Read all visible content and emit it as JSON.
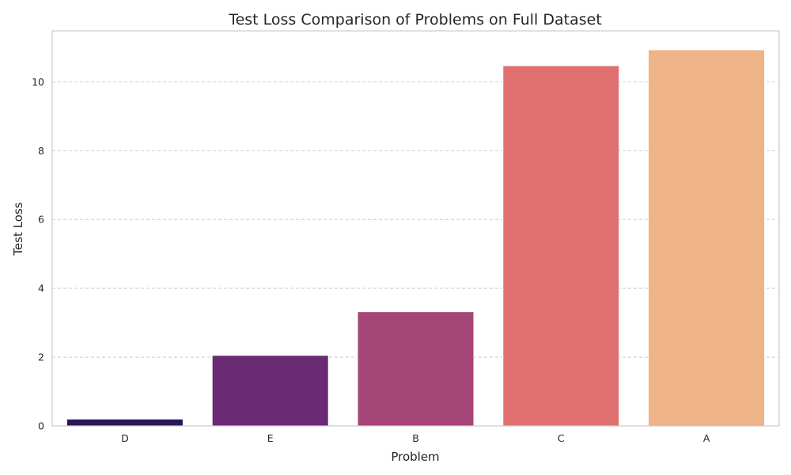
{
  "chart_data": {
    "type": "bar",
    "title": "Test Loss Comparison of Problems on Full Dataset",
    "xlabel": "Problem",
    "ylabel": "Test Loss",
    "categories": [
      "D",
      "E",
      "B",
      "C",
      "A"
    ],
    "values": [
      0.2,
      2.05,
      3.32,
      10.47,
      10.93
    ],
    "colors": [
      "#2a1658",
      "#6a2a74",
      "#a54677",
      "#e07070",
      "#eeb388"
    ],
    "ylim": [
      0,
      11.48
    ],
    "yticks": [
      0,
      2,
      4,
      6,
      8,
      10
    ],
    "grid": "horizontal dashed"
  }
}
